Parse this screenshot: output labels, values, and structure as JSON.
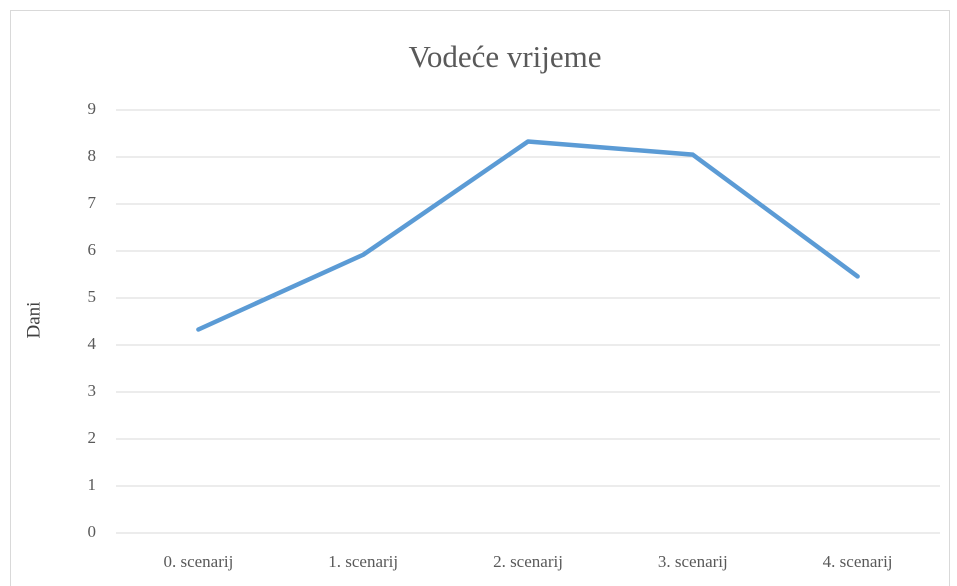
{
  "chart_data": {
    "type": "line",
    "title": "Vodeće vrijeme",
    "y_label": "Dani",
    "categories": [
      "0. scenarij",
      "1. scenarij",
      "2. scenarij",
      "3. scenarij",
      "4. scenarij"
    ],
    "series": [
      {
        "name": "Vodeće vrijeme",
        "color": "#5b9bd5",
        "values": [
          4.33,
          5.92,
          8.33,
          8.05,
          5.46
        ]
      }
    ],
    "ylim": [
      0,
      9
    ],
    "yticks": [
      0,
      1,
      2,
      3,
      4,
      5,
      6,
      7,
      8,
      9
    ],
    "grid": true
  }
}
